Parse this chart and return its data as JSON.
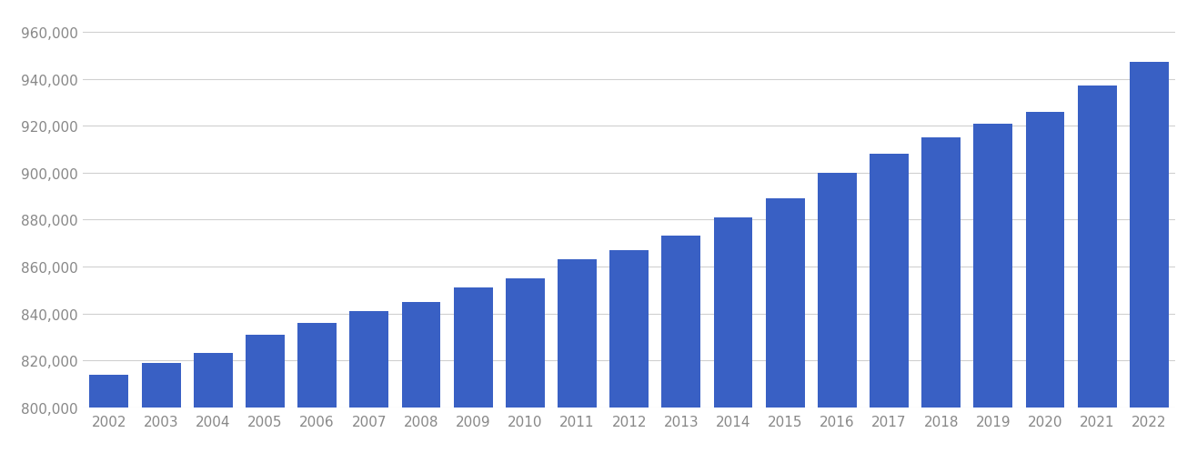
{
  "years": [
    2002,
    2003,
    2004,
    2005,
    2006,
    2007,
    2008,
    2009,
    2010,
    2011,
    2012,
    2013,
    2014,
    2015,
    2016,
    2017,
    2018,
    2019,
    2020,
    2021,
    2022
  ],
  "values": [
    814000,
    819000,
    823000,
    831000,
    836000,
    841000,
    845000,
    851000,
    855000,
    863000,
    867000,
    873000,
    881000,
    889000,
    900000,
    908000,
    915000,
    921000,
    926000,
    937000,
    947000
  ],
  "bar_color": "#3960c4",
  "ylim_min": 800000,
  "ylim_max": 968000,
  "ytick_min": 800000,
  "ytick_max": 960000,
  "ytick_step": 20000,
  "background_color": "#ffffff",
  "grid_color": "#d0d0d0",
  "tick_label_color": "#888888",
  "tick_fontsize": 11,
  "bar_width": 0.75
}
